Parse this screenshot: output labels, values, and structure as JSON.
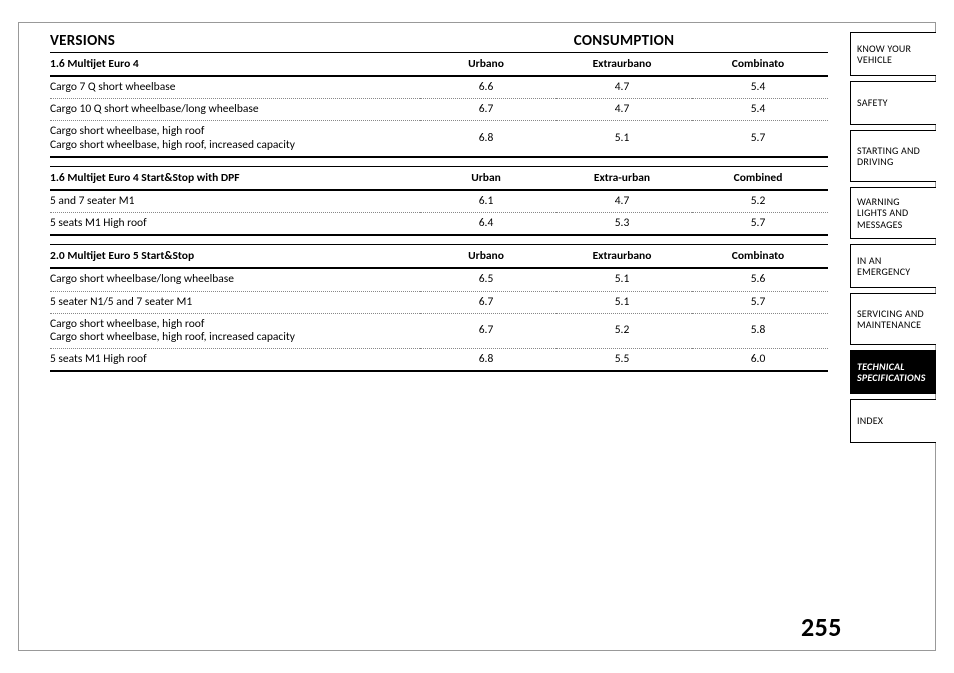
{
  "headings": {
    "left": "VERSIONS",
    "center": "CONSUMPTION"
  },
  "page_number": "255",
  "sections": [
    {
      "label": "1.6 Multijet Euro 4",
      "cols": [
        "Urbano",
        "Extraurbano",
        "Combinato"
      ],
      "rows": [
        {
          "label": "Cargo 7 Q short wheelbase",
          "v": [
            "6.6",
            "4.7",
            "5.4"
          ]
        },
        {
          "label": "Cargo 10 Q short wheelbase/long wheelbase",
          "v": [
            "6.7",
            "4.7",
            "5.4"
          ]
        },
        {
          "label": "Cargo short wheelbase, high roof\nCargo short wheelbase, high roof, increased capacity",
          "v": [
            "6.8",
            "5.1",
            "5.7"
          ]
        }
      ]
    },
    {
      "label": "1.6 Multijet Euro 4 Start&Stop with DPF",
      "cols": [
        "Urban",
        "Extra-urban",
        "Combined"
      ],
      "rows": [
        {
          "label": "5 and 7 seater M1",
          "v": [
            "6.1",
            "4.7",
            "5.2"
          ]
        },
        {
          "label": "5 seats M1 High roof",
          "v": [
            "6.4",
            "5.3",
            "5.7"
          ]
        }
      ]
    },
    {
      "label": "2.0 Multijet Euro 5 Start&Stop",
      "cols": [
        "Urbano",
        "Extraurbano",
        "Combinato"
      ],
      "rows": [
        {
          "label": "Cargo short wheelbase/long wheelbase",
          "v": [
            "6.5",
            "5.1",
            "5.6"
          ]
        },
        {
          "label": "5 seater N1/5 and 7 seater M1",
          "v": [
            "6.7",
            "5.1",
            "5.7"
          ]
        },
        {
          "label": "Cargo short wheelbase, high roof\nCargo short wheelbase, high roof, increased capacity",
          "v": [
            "6.7",
            "5.2",
            "5.8"
          ]
        },
        {
          "label": "5 seats M1 High roof",
          "v": [
            "6.8",
            "5.5",
            "6.0"
          ]
        }
      ]
    }
  ],
  "sidebar": [
    {
      "label": "KNOW YOUR VEHICLE",
      "active": false
    },
    {
      "label": "SAFETY",
      "active": false
    },
    {
      "label": "STARTING AND DRIVING",
      "active": false
    },
    {
      "label": "WARNING LIGHTS AND MESSAGES",
      "active": false
    },
    {
      "label": "IN AN EMERGENCY",
      "active": false
    },
    {
      "label": "SERVICING AND MAINTENANCE",
      "active": false
    },
    {
      "label": "TECHNICAL SPECIFICATIONS",
      "active": true
    },
    {
      "label": "INDEX",
      "active": false
    }
  ]
}
